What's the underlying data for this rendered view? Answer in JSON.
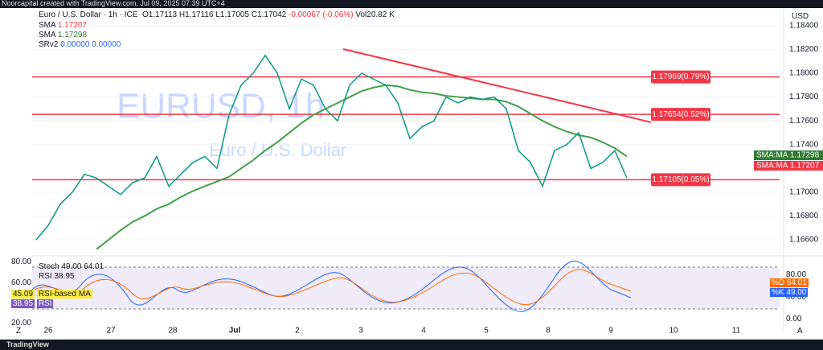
{
  "top_bar": "Noorcapital created with TradingView.com, Jul 09, 2025 07:39 UTC+4",
  "header": {
    "symbol": "Euro / U.S. Dollar · 1h · ICE",
    "open": "O1.17113",
    "high": "H1.17116",
    "low": "L1.17005",
    "close": "C1.17042",
    "change": "-0.00067 (-0.06%)",
    "volume": "Vol20.82 K"
  },
  "legend": [
    {
      "name": "SMA",
      "value": "1.17207"
    },
    {
      "name": "SMA",
      "value": "1.17298"
    },
    {
      "name": "SRv2",
      "value": "0.00000 0.00000"
    }
  ],
  "currency": "USD",
  "watermark": {
    "ticker": "EURUSD, 1h",
    "name": "Euro / U.S. Dollar"
  },
  "price_axis": {
    "ylim": [
      1.16465,
      1.1848
    ],
    "ticks": [
      {
        "value": 1.184,
        "label": "1.18400"
      },
      {
        "value": 1.182,
        "label": "1.18200"
      },
      {
        "value": 1.18,
        "label": "1.18000"
      },
      {
        "value": 1.178,
        "label": "1.17800"
      },
      {
        "value": 1.176,
        "label": "1.17600"
      },
      {
        "value": 1.174,
        "label": "1.17400"
      },
      {
        "value": 1.17,
        "label": "1.17000"
      },
      {
        "value": 1.168,
        "label": "1.16800"
      },
      {
        "value": 1.166,
        "label": "1.16600"
      }
    ]
  },
  "levels": [
    {
      "value": 1.17969,
      "label": "1.17969(0.79%)"
    },
    {
      "value": 1.17654,
      "label": "1.17654(0.52%)"
    },
    {
      "value": 1.17105,
      "label": "1.17105(0.05%)"
    }
  ],
  "trendline": [
    1.18203,
    1.17588
  ],
  "closes": [
    1.166,
    1.1672,
    1.169,
    1.17,
    1.1715,
    1.1712,
    1.1705,
    1.1698,
    1.1708,
    1.1712,
    1.173,
    1.1705,
    1.1715,
    1.1725,
    1.173,
    1.172,
    1.1765,
    1.179,
    1.18,
    1.1815,
    1.18,
    1.177,
    1.1795,
    1.179,
    1.177,
    1.176,
    1.179,
    1.18,
    1.1795,
    1.179,
    1.1775,
    1.1745,
    1.1755,
    1.176,
    1.178,
    1.1775,
    1.178,
    1.1778,
    1.178,
    1.177,
    1.1735,
    1.1725,
    1.1705,
    1.1735,
    1.174,
    1.175,
    1.172,
    1.1725,
    1.1735,
    1.1712
  ],
  "sma50": [
    null,
    null,
    null,
    null,
    null,
    1.1652,
    1.166,
    1.1668,
    1.1675,
    1.168,
    1.1686,
    1.169,
    1.1696,
    1.1701,
    1.1705,
    1.1709,
    1.1713,
    1.172,
    1.1727,
    1.1735,
    1.1742,
    1.175,
    1.1758,
    1.1765,
    1.177,
    1.1775,
    1.178,
    1.1785,
    1.1788,
    1.179,
    1.1789,
    1.1786,
    1.1784,
    1.1783,
    1.1781,
    1.178,
    1.1779,
    1.1778,
    1.1778,
    1.1776,
    1.1772,
    1.1766,
    1.176,
    1.1755,
    1.1751,
    1.1748,
    1.1746,
    1.1742,
    1.1737,
    1.173
  ],
  "price_labels": [
    {
      "name": "SMA:MA",
      "value": "1.17298",
      "color": "#2e7d32"
    },
    {
      "name": "SMA:MA",
      "value": "1.17207",
      "color": "#f23645"
    }
  ],
  "oscillator": {
    "legend_stoch": "Stoch 49.00 64.01",
    "legend_rsi": "RSI 38.95",
    "rsi_ma": "45.09",
    "rsi_ma_name": "RSI-based MA",
    "rsi": "38.95",
    "rsi_name": "RSI",
    "left_ticks": [
      "80.00",
      "60.00",
      "20.00"
    ],
    "right_ticks": [
      "80.00",
      "40.00",
      "0.00"
    ],
    "d_label": "%D",
    "d_value": "64.01",
    "k_label": "%K",
    "k_value": "49.00"
  },
  "dates": [
    "26",
    "27",
    "28",
    "Jul",
    "2",
    "3",
    "4",
    "5",
    "8",
    "9",
    "10",
    "11"
  ],
  "corner_left": "Z",
  "corner_right": "A",
  "footer": "TradingView"
}
